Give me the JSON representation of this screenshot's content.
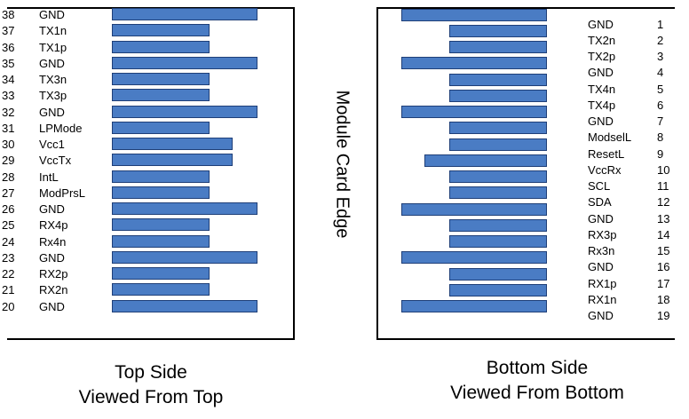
{
  "center_label": "Module Card Edge",
  "top_side": {
    "caption_line1": "Top Side",
    "caption_line2": "Viewed From Top",
    "pins": [
      {
        "num": "38",
        "label": "GND",
        "pad": "long"
      },
      {
        "num": "37",
        "label": "TX1n",
        "pad": "short"
      },
      {
        "num": "36",
        "label": "TX1p",
        "pad": "short"
      },
      {
        "num": "35",
        "label": "GND",
        "pad": "long"
      },
      {
        "num": "34",
        "label": "TX3n",
        "pad": "short"
      },
      {
        "num": "33",
        "label": "TX3p",
        "pad": "short"
      },
      {
        "num": "32",
        "label": "GND",
        "pad": "long"
      },
      {
        "num": "31",
        "label": "LPMode",
        "pad": "short"
      },
      {
        "num": "30",
        "label": "Vcc1",
        "pad": "medium"
      },
      {
        "num": "29",
        "label": "VccTx",
        "pad": "medium"
      },
      {
        "num": "28",
        "label": "IntL",
        "pad": "short"
      },
      {
        "num": "27",
        "label": "ModPrsL",
        "pad": "short"
      },
      {
        "num": "26",
        "label": "GND",
        "pad": "long"
      },
      {
        "num": "25",
        "label": "RX4p",
        "pad": "short"
      },
      {
        "num": "24",
        "label": "Rx4n",
        "pad": "short"
      },
      {
        "num": "23",
        "label": "GND",
        "pad": "long"
      },
      {
        "num": "22",
        "label": "RX2p",
        "pad": "short"
      },
      {
        "num": "21",
        "label": "RX2n",
        "pad": "short"
      },
      {
        "num": "20",
        "label": "GND",
        "pad": "long"
      }
    ]
  },
  "bottom_side": {
    "caption_line1": "Bottom Side",
    "caption_line2": "Viewed From Bottom",
    "pins": [
      {
        "num": "1",
        "label": "GND",
        "pad": "long"
      },
      {
        "num": "2",
        "label": "TX2n",
        "pad": "short"
      },
      {
        "num": "3",
        "label": "TX2p",
        "pad": "short"
      },
      {
        "num": "4",
        "label": "GND",
        "pad": "long"
      },
      {
        "num": "5",
        "label": "TX4n",
        "pad": "short"
      },
      {
        "num": "6",
        "label": "TX4p",
        "pad": "short"
      },
      {
        "num": "7",
        "label": "GND",
        "pad": "long"
      },
      {
        "num": "8",
        "label": "ModselL",
        "pad": "short"
      },
      {
        "num": "9",
        "label": "ResetL",
        "pad": "short"
      },
      {
        "num": "10",
        "label": "VccRx",
        "pad": "medium"
      },
      {
        "num": "11",
        "label": "SCL",
        "pad": "short"
      },
      {
        "num": "12",
        "label": "SDA",
        "pad": "short"
      },
      {
        "num": "13",
        "label": "GND",
        "pad": "long"
      },
      {
        "num": "14",
        "label": "RX3p",
        "pad": "short"
      },
      {
        "num": "15",
        "label": "Rx3n",
        "pad": "short"
      },
      {
        "num": "16",
        "label": "GND",
        "pad": "long"
      },
      {
        "num": "17",
        "label": "RX1p",
        "pad": "short"
      },
      {
        "num": "18",
        "label": "RX1n",
        "pad": "short"
      },
      {
        "num": "19",
        "label": "GND",
        "pad": "long"
      }
    ]
  },
  "colors": {
    "pad_fill": "#4a7cc4",
    "pad_border": "#1f3f78",
    "frame": "#000000"
  }
}
